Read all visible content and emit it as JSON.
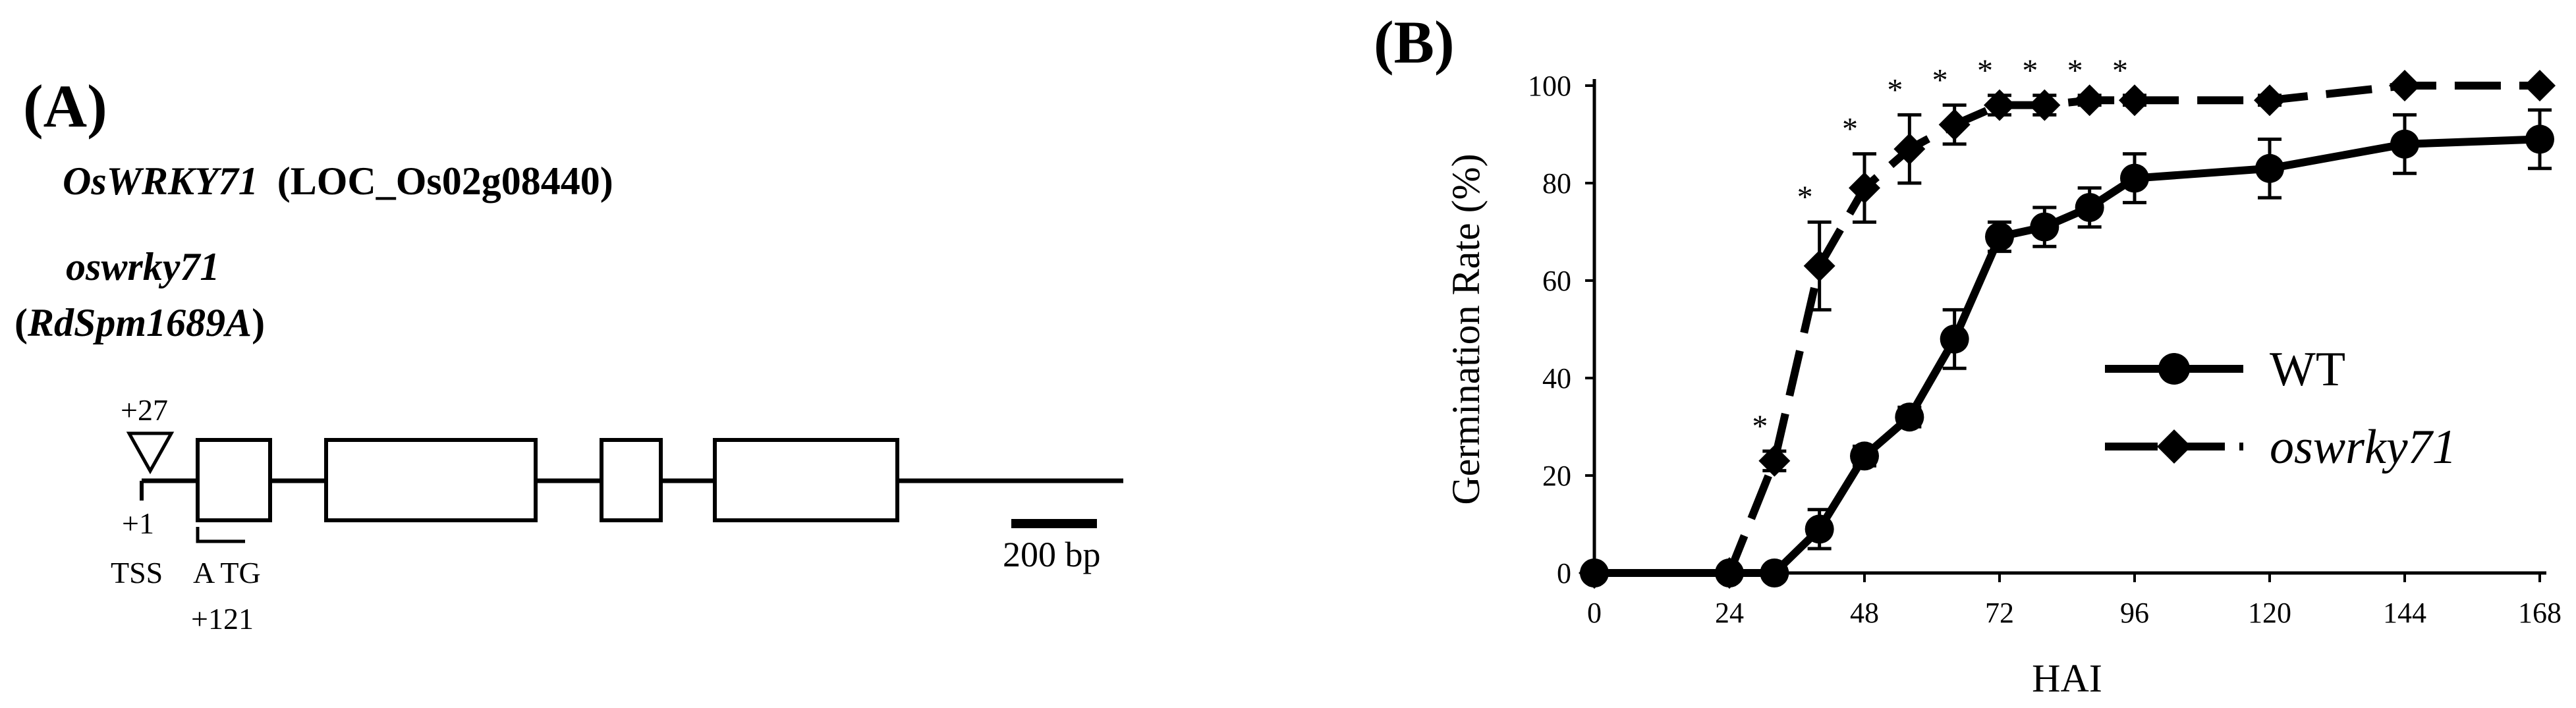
{
  "panel_a": {
    "label": "(A)",
    "gene_name": "OsWRKY71",
    "gene_locus": "(LOC_Os02g08440)",
    "mutant_name": "oswrky71",
    "allele_open": "(",
    "allele_name": "RdSpm1689A",
    "allele_close": ")",
    "insertion_label": "+27",
    "tss_position": "+1",
    "tss_label": "TSS",
    "atg_label": "A TG",
    "atg_position": "+121",
    "scale_label": "200 bp"
  },
  "panel_b": {
    "label": "(B)"
  },
  "chart_data": {
    "type": "line",
    "xlabel": "HAI",
    "ylabel": "Germination Rate (%)",
    "xlim": [
      0,
      168
    ],
    "ylim": [
      0,
      100
    ],
    "xticks": [
      0,
      24,
      48,
      72,
      96,
      120,
      144,
      168
    ],
    "yticks": [
      0,
      20,
      40,
      60,
      80,
      100
    ],
    "legend_position": "right-middle",
    "series": [
      {
        "name": "WT",
        "marker": "circle",
        "line_style": "solid",
        "x": [
          0,
          24,
          32,
          40,
          48,
          56,
          64,
          72,
          80,
          88,
          96,
          120,
          144,
          168
        ],
        "y": [
          0,
          0,
          0,
          9,
          24,
          32,
          48,
          69,
          71,
          75,
          81,
          83,
          88,
          89
        ],
        "error": [
          0,
          0,
          0,
          4,
          2,
          2,
          6,
          3,
          4,
          4,
          5,
          6,
          6,
          6
        ]
      },
      {
        "name": "oswrky71",
        "marker": "diamond",
        "line_style": "dashed",
        "x": [
          0,
          24,
          32,
          40,
          48,
          56,
          64,
          72,
          80,
          88,
          96,
          120,
          144,
          168
        ],
        "y": [
          0,
          0,
          23,
          63,
          79,
          87,
          92,
          96,
          96,
          97,
          97,
          97,
          100,
          100
        ],
        "error": [
          0,
          0,
          2,
          9,
          7,
          7,
          4,
          2,
          2,
          1,
          1,
          1,
          0,
          0
        ]
      }
    ],
    "significance_marker": "*",
    "significant_x": [
      32,
      40,
      48,
      56,
      64,
      72,
      80,
      88,
      96
    ]
  }
}
